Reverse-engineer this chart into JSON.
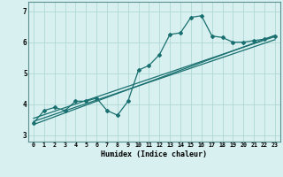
{
  "xlabel": "Humidex (Indice chaleur)",
  "bg_color": "#d8f0f0",
  "grid_color": "#b0d8d8",
  "line_color": "#1a7070",
  "xlim": [
    -0.5,
    23.5
  ],
  "ylim": [
    2.8,
    7.3
  ],
  "yticks": [
    3,
    4,
    5,
    6,
    7
  ],
  "xticks": [
    0,
    1,
    2,
    3,
    4,
    5,
    6,
    7,
    8,
    9,
    10,
    11,
    12,
    13,
    14,
    15,
    16,
    17,
    18,
    19,
    20,
    21,
    22,
    23
  ],
  "humidex_line": {
    "x": [
      0,
      1,
      2,
      3,
      4,
      5,
      6,
      7,
      8,
      9,
      10,
      11,
      12,
      13,
      14,
      15,
      16,
      17,
      18,
      19,
      20,
      21,
      22,
      23
    ],
    "y": [
      3.4,
      3.8,
      3.9,
      3.8,
      4.1,
      4.1,
      4.2,
      3.8,
      3.65,
      4.1,
      5.1,
      5.25,
      5.6,
      6.25,
      6.3,
      6.8,
      6.85,
      6.2,
      6.15,
      6.0,
      6.0,
      6.05,
      6.1,
      6.2
    ]
  },
  "line1": {
    "x": [
      0,
      23
    ],
    "y": [
      3.55,
      6.18
    ]
  },
  "line2": {
    "x": [
      0,
      23
    ],
    "y": [
      3.45,
      6.08
    ]
  },
  "line3": {
    "x": [
      0,
      23
    ],
    "y": [
      3.35,
      6.22
    ]
  }
}
